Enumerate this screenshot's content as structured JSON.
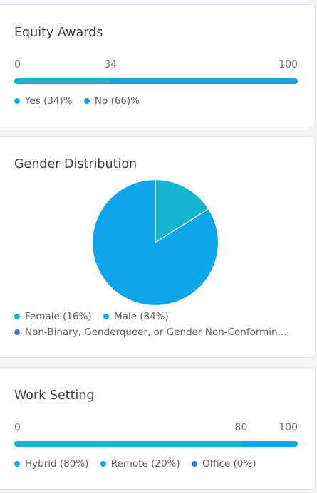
{
  "colors": {
    "teal": "#13b5d1",
    "blue": "#0ea5e9",
    "indigo": "#3b74e0"
  },
  "chart_data": [
    {
      "type": "bar",
      "title": "Equity Awards",
      "ticks": [
        "0",
        "34",
        "100"
      ],
      "tick_values": [
        0,
        34,
        100
      ],
      "xlim": [
        0,
        100
      ],
      "series": [
        {
          "name": "Yes",
          "value": 34,
          "color": "#13b5d1"
        },
        {
          "name": "No",
          "value": 66,
          "color": "#0ea5e9"
        }
      ],
      "legend": [
        "Yes (34)%",
        "No (66)%"
      ]
    },
    {
      "type": "pie",
      "title": "Gender Distribution",
      "series": [
        {
          "name": "Female",
          "value": 16,
          "color": "#13b5d1"
        },
        {
          "name": "Male",
          "value": 84,
          "color": "#0ea5e9"
        },
        {
          "name": "Non-Binary, Genderqueer, or Gender Non-Conforming",
          "value": 0,
          "color": "#3b74e0"
        }
      ],
      "legend": [
        "Female (16%)",
        "Male (84%)",
        "Non-Binary, Genderqueer, or Gender Non-Conformin..."
      ]
    },
    {
      "type": "bar",
      "title": "Work Setting",
      "ticks": [
        "0",
        "80",
        "100"
      ],
      "tick_values": [
        0,
        80,
        100
      ],
      "xlim": [
        0,
        100
      ],
      "series": [
        {
          "name": "Hybrid",
          "value": 80,
          "color": "#13b5d1"
        },
        {
          "name": "Remote",
          "value": 20,
          "color": "#0ea5e9"
        },
        {
          "name": "Office",
          "value": 0,
          "color": "#3b74e0"
        }
      ],
      "legend": [
        "Hybrid (80%)",
        "Remote (20%)",
        "Office (0%)"
      ]
    }
  ]
}
